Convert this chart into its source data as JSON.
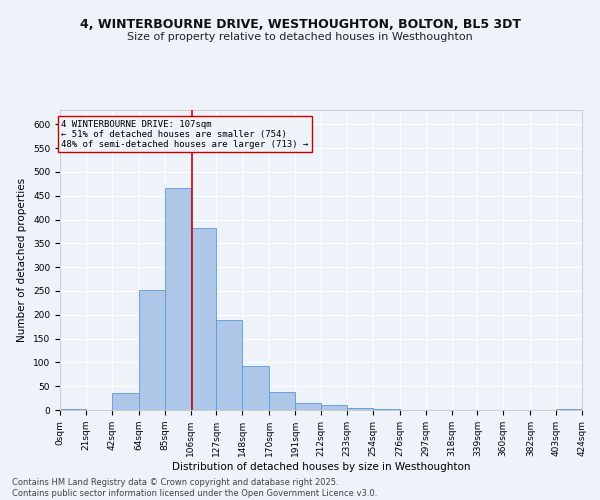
{
  "title_line1": "4, WINTERBOURNE DRIVE, WESTHOUGHTON, BOLTON, BL5 3DT",
  "title_line2": "Size of property relative to detached houses in Westhoughton",
  "xlabel": "Distribution of detached houses by size in Westhoughton",
  "ylabel": "Number of detached properties",
  "bin_edges": [
    0,
    21,
    42,
    64,
    85,
    106,
    127,
    148,
    170,
    191,
    212,
    233,
    254,
    276,
    297,
    318,
    339,
    360,
    382,
    403,
    424
  ],
  "bar_heights": [
    2,
    0,
    35,
    252,
    467,
    382,
    190,
    92,
    37,
    15,
    10,
    5,
    3,
    1,
    0,
    0,
    0,
    1,
    0,
    2
  ],
  "bar_color": "#aec6e8",
  "bar_edgecolor": "#5b9bd5",
  "property_size": 107,
  "annotation_line1": "4 WINTERBOURNE DRIVE: 107sqm",
  "annotation_line2": "← 51% of detached houses are smaller (754)",
  "annotation_line3": "48% of semi-detached houses are larger (713) →",
  "vline_color": "#cc0000",
  "box_edgecolor": "#cc0000",
  "background_color": "#eef2f9",
  "grid_color": "#ffffff",
  "ylim": [
    0,
    630
  ],
  "yticks": [
    0,
    50,
    100,
    150,
    200,
    250,
    300,
    350,
    400,
    450,
    500,
    550,
    600
  ],
  "footer_line1": "Contains HM Land Registry data © Crown copyright and database right 2025.",
  "footer_line2": "Contains public sector information licensed under the Open Government Licence v3.0.",
  "title_fontsize": 9,
  "subtitle_fontsize": 8,
  "tick_fontsize": 6.5,
  "label_fontsize": 7.5,
  "footer_fontsize": 6,
  "annot_fontsize": 6.5
}
